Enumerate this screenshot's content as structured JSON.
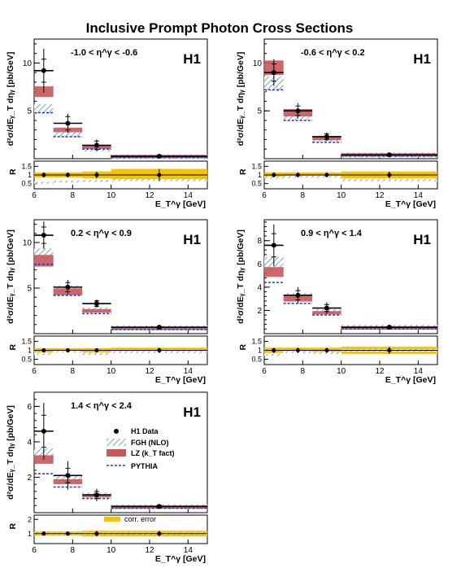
{
  "figure": {
    "title": "Inclusive Prompt Photon Cross Sections",
    "ylabel_main": "d²σ/dEᵧ_T dηᵧ [pb/GeV]",
    "ylabel_ratio": "R",
    "xlabel": "E_T^γ [GeV]",
    "experiment_label": "H1",
    "colors": {
      "data": "#000000",
      "fgh_hatch": "#6fa8c8",
      "lz_fill": "#c8585a",
      "pythia": "#1a3ad0",
      "corr_error": "#f5c400"
    }
  },
  "legend": {
    "data": "H1 Data",
    "fgh": "FGH (NLO)",
    "lz": "LZ (k_T fact)",
    "pythia": "PYTHIA",
    "corr_error": "corr. error"
  },
  "chart_data": [
    {
      "type": "scatter",
      "eta_range": "-1.0 < η^γ < -0.6",
      "xlim": [
        6,
        15
      ],
      "ylim": [
        0,
        12.5
      ],
      "yticks": [
        5,
        10
      ],
      "xticks": [
        6,
        8,
        10,
        12,
        14
      ],
      "x_bins": [
        [
          6,
          7
        ],
        [
          7,
          8.5
        ],
        [
          8.5,
          10
        ],
        [
          10,
          15
        ]
      ],
      "data": [
        9.2,
        3.7,
        1.4,
        0.25
      ],
      "data_err_stat": [
        1.2,
        0.7,
        0.45,
        0.08
      ],
      "data_err_tot": [
        2.3,
        1.0,
        0.6,
        0.1
      ],
      "fgh": [
        5.2,
        2.5,
        1.0,
        0.2
      ],
      "lz": [
        7.0,
        3.0,
        1.2,
        0.22
      ],
      "pythia": [
        4.8,
        2.3,
        1.0,
        0.12
      ],
      "ratio_ylim": [
        0.2,
        1.8
      ],
      "ratio_yticks": [
        0.5,
        1,
        1.5
      ],
      "ratio_data": [
        1.0,
        1.0,
        1.0,
        1.0
      ],
      "ratio_fgh": [
        0.55,
        0.62,
        0.65,
        0.7
      ],
      "ratio_corr_err": [
        0.15,
        0.15,
        0.2,
        0.35
      ]
    },
    {
      "type": "scatter",
      "eta_range": "-0.6 < η^γ < 0.2",
      "xlim": [
        6,
        15
      ],
      "ylim": [
        0,
        12.5
      ],
      "yticks": [
        5,
        10
      ],
      "xticks": [
        6,
        8,
        10,
        12,
        14
      ],
      "x_bins": [
        [
          6,
          7
        ],
        [
          7,
          8.5
        ],
        [
          8.5,
          10
        ],
        [
          10,
          15
        ]
      ],
      "data": [
        9.0,
        5.0,
        2.3,
        0.4
      ],
      "data_err_stat": [
        0.9,
        0.5,
        0.3,
        0.08
      ],
      "data_err_tot": [
        1.4,
        0.8,
        0.45,
        0.1
      ],
      "fgh": [
        7.8,
        4.5,
        2.0,
        0.38
      ],
      "lz": [
        9.5,
        4.8,
        2.1,
        0.4
      ],
      "pythia": [
        7.2,
        4.0,
        1.7,
        0.28
      ],
      "ratio_ylim": [
        0.2,
        1.8
      ],
      "ratio_yticks": [
        0.5,
        1,
        1.5
      ],
      "ratio_data": [
        1.0,
        1.0,
        1.0,
        1.0
      ],
      "ratio_fgh": [
        0.85,
        0.9,
        0.9,
        0.7
      ],
      "ratio_corr_err": [
        0.15,
        0.15,
        0.15,
        0.2
      ]
    },
    {
      "type": "scatter",
      "eta_range": "0.2 < η^γ < 0.9",
      "xlim": [
        6,
        15
      ],
      "ylim": [
        0,
        12.5
      ],
      "yticks": [
        5,
        10
      ],
      "xticks": [
        6,
        8,
        10,
        12,
        14
      ],
      "x_bins": [
        [
          6,
          7
        ],
        [
          7,
          8.5
        ],
        [
          8.5,
          10
        ],
        [
          10,
          15
        ]
      ],
      "data": [
        10.8,
        5.1,
        3.3,
        0.7
      ],
      "data_err_stat": [
        0.9,
        0.5,
        0.3,
        0.08
      ],
      "data_err_tot": [
        1.5,
        0.8,
        0.45,
        0.12
      ],
      "fgh": [
        8.5,
        4.8,
        2.6,
        0.65
      ],
      "lz": [
        8.0,
        4.6,
        2.5,
        0.6
      ],
      "pythia": [
        7.6,
        4.2,
        2.2,
        0.45
      ],
      "ratio_ylim": [
        0.2,
        1.8
      ],
      "ratio_yticks": [
        0.5,
        1,
        1.5
      ],
      "ratio_data": [
        1.0,
        1.0,
        1.0,
        1.0
      ],
      "ratio_fgh": [
        0.8,
        0.95,
        0.8,
        0.9
      ],
      "ratio_corr_err": [
        0.12,
        0.12,
        0.12,
        0.15
      ]
    },
    {
      "type": "scatter",
      "eta_range": "0.9 < η^γ < 1.4",
      "xlim": [
        6,
        15
      ],
      "ylim": [
        0,
        9.8
      ],
      "yticks": [
        2,
        4,
        6,
        8
      ],
      "xticks": [
        6,
        8,
        10,
        12,
        14
      ],
      "x_bins": [
        [
          6,
          7
        ],
        [
          7,
          8.5
        ],
        [
          8.5,
          10
        ],
        [
          10,
          15
        ]
      ],
      "data": [
        7.6,
        3.3,
        2.2,
        0.55
      ],
      "data_err_stat": [
        1.0,
        0.4,
        0.3,
        0.08
      ],
      "data_err_tot": [
        1.8,
        0.7,
        0.5,
        0.12
      ],
      "fgh": [
        6.0,
        3.2,
        1.9,
        0.55
      ],
      "lz": [
        5.3,
        3.0,
        1.8,
        0.5
      ],
      "pythia": [
        4.4,
        2.6,
        1.6,
        0.4
      ],
      "ratio_ylim": [
        0.2,
        1.8
      ],
      "ratio_yticks": [
        0.5,
        1,
        1.5
      ],
      "ratio_data": [
        1.0,
        1.0,
        1.0,
        1.0
      ],
      "ratio_fgh": [
        0.75,
        0.9,
        0.85,
        1.0
      ],
      "ratio_corr_err": [
        0.15,
        0.15,
        0.15,
        0.2
      ]
    },
    {
      "type": "scatter",
      "eta_range": "1.4 < η^γ < 2.4",
      "xlim": [
        6,
        15
      ],
      "ylim": [
        0,
        6.8
      ],
      "yticks": [
        2,
        4,
        6
      ],
      "xticks": [
        6,
        8,
        10,
        12,
        14
      ],
      "x_bins": [
        [
          6,
          7
        ],
        [
          7,
          8.5
        ],
        [
          8.5,
          10
        ],
        [
          10,
          15
        ]
      ],
      "data": [
        4.6,
        2.1,
        1.0,
        0.35
      ],
      "data_err_stat": [
        0.9,
        0.4,
        0.2,
        0.06
      ],
      "data_err_tot": [
        1.6,
        0.8,
        0.35,
        0.1
      ],
      "fgh": [
        3.3,
        1.9,
        1.0,
        0.33
      ],
      "lz": [
        3.0,
        1.75,
        0.95,
        0.32
      ],
      "pythia": [
        2.2,
        1.45,
        0.8,
        0.25
      ],
      "ratio_ylim": [
        0.3,
        2.3
      ],
      "ratio_yticks": [
        1,
        2
      ],
      "ratio_data": [
        1.0,
        1.0,
        1.0,
        1.0
      ],
      "ratio_fgh": [
        1.0,
        1.0,
        1.0,
        1.0
      ],
      "ratio_corr_err": [
        0.15,
        0.15,
        0.2,
        0.2
      ]
    }
  ]
}
